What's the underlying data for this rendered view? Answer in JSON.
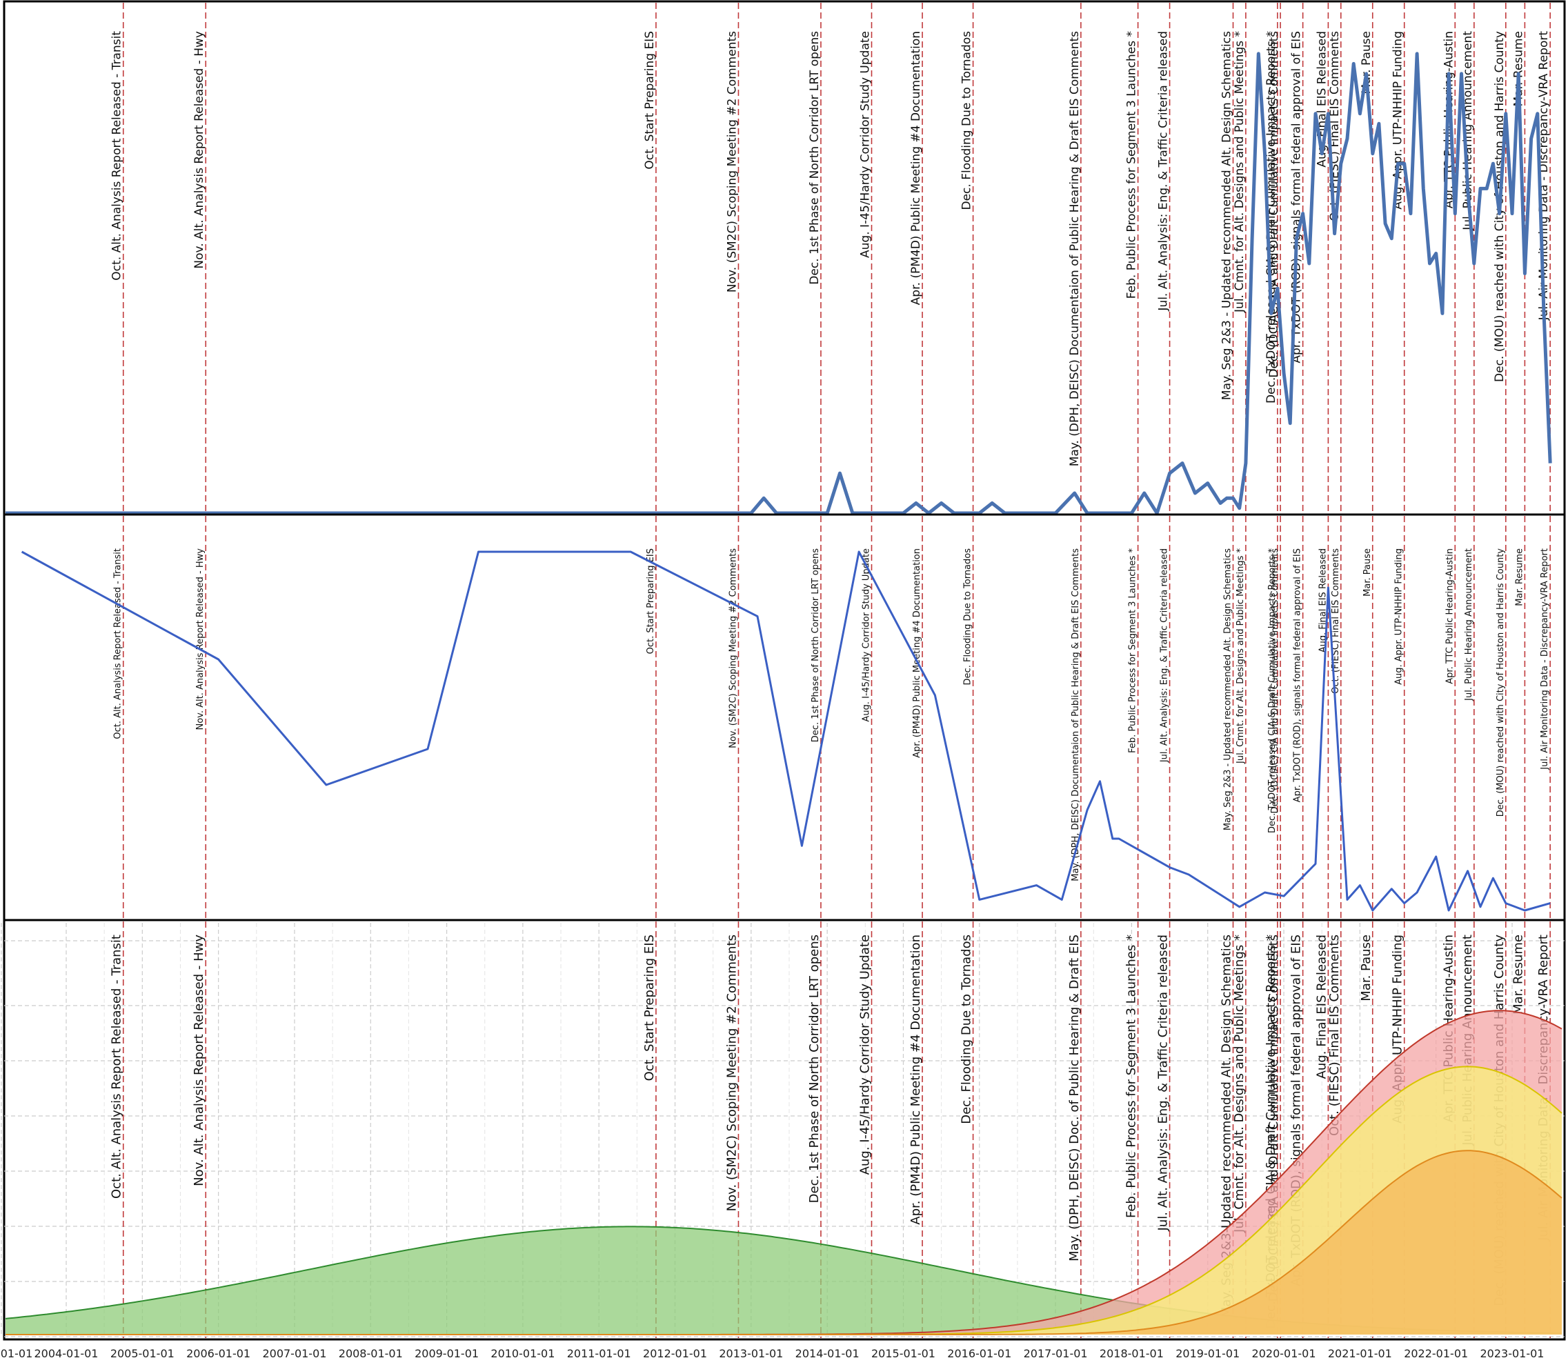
{
  "chart_data": [
    {
      "type": "line",
      "panel": "top",
      "color": "#4a72b0",
      "grid": false,
      "x": [
        "2003-01-01",
        "2012-01-01",
        "2013-01-01",
        "2013-03-01",
        "2013-05-01",
        "2014-01-01",
        "2014-03-01",
        "2014-05-01",
        "2015-01-01",
        "2015-03-01",
        "2015-05-01",
        "2015-07-01",
        "2015-09-01",
        "2016-01-01",
        "2016-03-01",
        "2016-05-01",
        "2017-01-01",
        "2017-04-01",
        "2017-06-01",
        "2018-01-01",
        "2018-03-01",
        "2018-05-01",
        "2018-07-01",
        "2018-09-01",
        "2018-11-01",
        "2019-01-01",
        "2019-03-01",
        "2019-04-01",
        "2019-05-01",
        "2019-06-01",
        "2019-07-01",
        "2019-08-01",
        "2019-09-01",
        "2019-10-01",
        "2019-11-01",
        "2019-12-01",
        "2020-01-01",
        "2020-02-01",
        "2020-03-01",
        "2020-04-01",
        "2020-05-01",
        "2020-06-01",
        "2020-07-01",
        "2020-08-01",
        "2020-09-01",
        "2020-10-01",
        "2020-11-01",
        "2020-12-01",
        "2021-01-01",
        "2021-02-01",
        "2021-03-01",
        "2021-04-01",
        "2021-05-01",
        "2021-06-01",
        "2021-07-01",
        "2021-08-01",
        "2021-09-01",
        "2021-10-01",
        "2021-11-01",
        "2021-12-01",
        "2022-01-01",
        "2022-02-01",
        "2022-03-01",
        "2022-04-01",
        "2022-05-01",
        "2022-06-01",
        "2022-07-01",
        "2022-08-01",
        "2022-09-01",
        "2022-10-01",
        "2022-11-01",
        "2022-12-01",
        "2023-01-01",
        "2023-02-01",
        "2023-03-01",
        "2023-04-01",
        "2023-05-01",
        "2023-06-01",
        "2023-07-01"
      ],
      "values": [
        0,
        0,
        0,
        3,
        0,
        0,
        8,
        0,
        0,
        2,
        0,
        2,
        0,
        0,
        2,
        0,
        0,
        4,
        0,
        0,
        4,
        0,
        8,
        10,
        4,
        6,
        2,
        3,
        3,
        1,
        10,
        55,
        92,
        72,
        40,
        45,
        28,
        18,
        55,
        60,
        50,
        80,
        72,
        80,
        56,
        70,
        75,
        90,
        80,
        88,
        72,
        78,
        58,
        55,
        70,
        70,
        60,
        92,
        65,
        50,
        52,
        40,
        88,
        60,
        88,
        65,
        50,
        65,
        65,
        70,
        60,
        80,
        60,
        88,
        48,
        75,
        80,
        40,
        10
      ],
      "ylim": [
        0,
        100
      ]
    },
    {
      "type": "line",
      "panel": "middle",
      "color": "#3a5fc4",
      "grid": false,
      "x": [
        "2003-06-01",
        "2006-01-01",
        "2007-06-01",
        "2008-10-01",
        "2009-06-01",
        "2011-06-01",
        "2013-02-01",
        "2013-09-01",
        "2014-06-01",
        "2015-06-01",
        "2016-01-01",
        "2016-10-01",
        "2017-02-01",
        "2017-06-01",
        "2017-08-01",
        "2017-10-01",
        "2017-11-01",
        "2018-07-01",
        "2018-10-01",
        "2019-06-01",
        "2019-10-01",
        "2020-01-01",
        "2020-06-01",
        "2020-08-01",
        "2020-11-01",
        "2021-01-01",
        "2021-03-01",
        "2021-06-01",
        "2021-08-01",
        "2021-10-01",
        "2022-01-01",
        "2022-03-01",
        "2022-06-01",
        "2022-08-01",
        "2022-10-01",
        "2022-12-01",
        "2023-03-01",
        "2023-07-01"
      ],
      "values": [
        100,
        70,
        35,
        45,
        100,
        100,
        82,
        18,
        100,
        60,
        3,
        7,
        3,
        28,
        36,
        20,
        20,
        12,
        10,
        1,
        5,
        4,
        13,
        90,
        3,
        7,
        0,
        6,
        2,
        5,
        15,
        0,
        11,
        1,
        9,
        2,
        0,
        2
      ],
      "ylim": [
        0,
        100
      ]
    },
    {
      "type": "area",
      "panel": "bottom",
      "grid": true,
      "x_ticks": [
        "01-01",
        "2004-01-01",
        "2005-01-01",
        "2006-01-01",
        "2007-01-01",
        "2008-01-01",
        "2009-01-01",
        "2010-01-01",
        "2011-01-01",
        "2012-01-01",
        "2013-01-01",
        "2014-01-01",
        "2015-01-01",
        "2016-01-01",
        "2017-01-01",
        "2018-01-01",
        "2019-01-01",
        "2020-01-01",
        "2021-01-01",
        "2022-01-01",
        "2023-01-01"
      ],
      "series": [
        {
          "color": "#8fcc7a",
          "line_color": "#2e8b2e",
          "peak": 27,
          "center": "2011-06-01",
          "width_years": 4.2
        },
        {
          "color": "#f4a6a6",
          "line_color": "#c0392b",
          "peak": 81,
          "center": "2022-11-01",
          "width_years": 2.4
        },
        {
          "color": "#f8f07a",
          "line_color": "#d9c400",
          "peak": 67,
          "center": "2022-06-01",
          "width_years": 2.0
        },
        {
          "color": "#f6b95c",
          "line_color": "#e08a1e",
          "peak": 46,
          "center": "2022-06-01",
          "width_years": 1.6
        }
      ],
      "ylim": [
        0,
        100
      ]
    }
  ],
  "events": [
    {
      "date": "2004-10-01",
      "label": "Oct. Alt. Analysis Report Released - Transit"
    },
    {
      "date": "2005-11-01",
      "label": "Nov. Alt. Analysis Report Released - Hwy"
    },
    {
      "date": "2011-10-01",
      "label": "Oct. Start Preparing EIS"
    },
    {
      "date": "2012-11-01",
      "label": "Nov. (SM2C) Scoping Meeting #2 Comments"
    },
    {
      "date": "2013-12-01",
      "label": "Dec. 1st Phase of North Corridor LRT opens"
    },
    {
      "date": "2014-08-01",
      "label": "Aug. I-45/Hardy Corridor Study Update"
    },
    {
      "date": "2015-04-01",
      "label": "Apr. (PM4D) Public Meeting #4 Documentation"
    },
    {
      "date": "2015-12-01",
      "label": "Dec. Flooding Due to Tornados"
    },
    {
      "date": "2017-05-01",
      "label": "May. (DPH, DEISC) Doc. of Public Hearing & Draft EIS"
    },
    {
      "date": "2018-02-01",
      "label": "Feb. Public Process for Segment 3 Launches *"
    },
    {
      "date": "2018-07-01",
      "label": "Jul. Alt. Analysis: Eng. & Traffic Criteria released"
    },
    {
      "date": "2019-05-01",
      "label": "May. Seg 2&3-Updated recommended Alt. Design Schematics"
    },
    {
      "date": "2019-07-01",
      "label": "Jul. Cmnt. for Alt. Designs and Public Meetings *"
    },
    {
      "date": "2019-12-01",
      "label": "Dec. TxDOT released CIA & Draft Cumulative Impacts Reports *"
    },
    {
      "date": "2019-12-15",
      "label": "Dec. (DCIAC) CIA and Draft Cumulative Impacts Comments"
    },
    {
      "date": "2020-04-01",
      "label": "Apr. TxDOT (ROD), signals formal federal approval of EIS"
    },
    {
      "date": "2020-08-01",
      "label": "Aug. Final EIS Released"
    },
    {
      "date": "2020-10-01",
      "label": "Oct. (FIESC) Final EIS Comments"
    },
    {
      "date": "2021-03-01",
      "label": "Mar. Pause"
    },
    {
      "date": "2021-08-01",
      "label": "Aug. Appr. UTP-NHHIP Funding"
    },
    {
      "date": "2022-04-01",
      "label": "Apr. TTC Public Hearing-Austin"
    },
    {
      "date": "2022-07-01",
      "label": "Jul. Public Hearing Announcement"
    },
    {
      "date": "2022-12-01",
      "label": "Dec. (MOU) reached with City of Houston and Harris County"
    },
    {
      "date": "2023-03-01",
      "label": "Mar. Resume"
    },
    {
      "date": "2023-07-01",
      "label": "Jul. Air Monitoring Data - Discrepancy-VRA Report"
    }
  ],
  "events_top_panel": [
    "Oct. Alt. Analysis Report Released - Transit",
    "Nov. Alt. Analysis Report Released - Hwy",
    "Oct. Start Preparing EIS",
    "Nov. (SM2C) Scoping Meeting #2 Comments",
    "Dec. 1st Phase of North Corridor LRT opens",
    "Aug. I-45/Hardy Corridor Study Update",
    "Apr. (PM4D) Public Meeting #4 Documentation",
    "Dec. Flooding Due to Tornados",
    "May. (DPH, DEISC) Documentaion of Public Hearing & Draft EIS Comments",
    "Feb. Public Process for Segment 3 Launches *",
    "Jul. Alt. Analysis: Eng. & Traffic Criteria released",
    "May. Seg 2&3 - Updated recommended Alt. Design Schematics",
    "Jul. Cmnt. for Alt. Designs and Public Meetings *",
    "Dec. TxDOT released CIA & Draft Cumulative Impacts Reports *",
    "Dec. (DCIAC) CIA and Draft Cumulative Impacts Comments",
    "Apr. TxDOT (ROD), signals formal federal approval of EIS",
    "Aug. Final EIS Released",
    "Oct. (FIESC) Final EIS Comments",
    "Mar. Pause",
    "Aug. Appr. UTP-NHHIP Funding",
    "Apr. TTC Public Hearing-Austin",
    "Jul. Public Hearing Announcement",
    "Dec. (MOU) reached with City of Houston and Harris County",
    "Mar. Resume",
    "Jul. Air Monitoring Data - Discrepancy-VRA Report"
  ],
  "events_middle_panel": [
    "Oct. Alt. Analysis Report Released - Transit",
    "Nov. Alt. Analysis Report Released - Hwy",
    "Oct. Start Preparing EIS",
    "Nov. (SM2C) Scoping Meeting #2 Comments",
    "Dec. 1st Phase of North Corridor LRT opens",
    "Aug. I-45/Hardy Corridor Study Update",
    "Apr. (PM4D) Public Meeting #4 Documentation",
    "Dec. Flooding Due to Tornados",
    "May. (DPH, DEISC) Documentaion of Public Hearing & Draft EIS Comments",
    "Feb. Public Process for Segment 3 Launches *",
    "Jul. Alt. Analysis: Eng. & Traffic Criteria released",
    "May. Seg 2&3 - Updated recommended Alt. Design Schematics",
    "Jul. Cmnt. for Alt. Designs and Public Meetings *",
    "Dec. TxDOT released CIA & Draft Cumulative Impacts Reports *",
    "Dec. (DCIAC) CIA and Draft Cumulative Impacts Comments",
    "Apr. TxDOT (ROD), signals formal federal approval of EIS",
    "Aug. Final EIS Released",
    "Oct. (FIESC) Final EIS Comments",
    "Mar. Pause",
    "Aug. Appr. UTP-NHHIP Funding",
    "Apr. TTC Public Hearing-Austin",
    "Jul. Public Hearing Announcement",
    "Dec. (MOU) reached with City of Houston and Harris County",
    "Mar. Resume",
    "Jul. Air Monitoring Data - Discrepancy-VRA Report"
  ],
  "colors": {
    "event_line": "#c0393b",
    "frame": "#000000",
    "grid": "#cccccc",
    "tick_text": "#222222"
  }
}
